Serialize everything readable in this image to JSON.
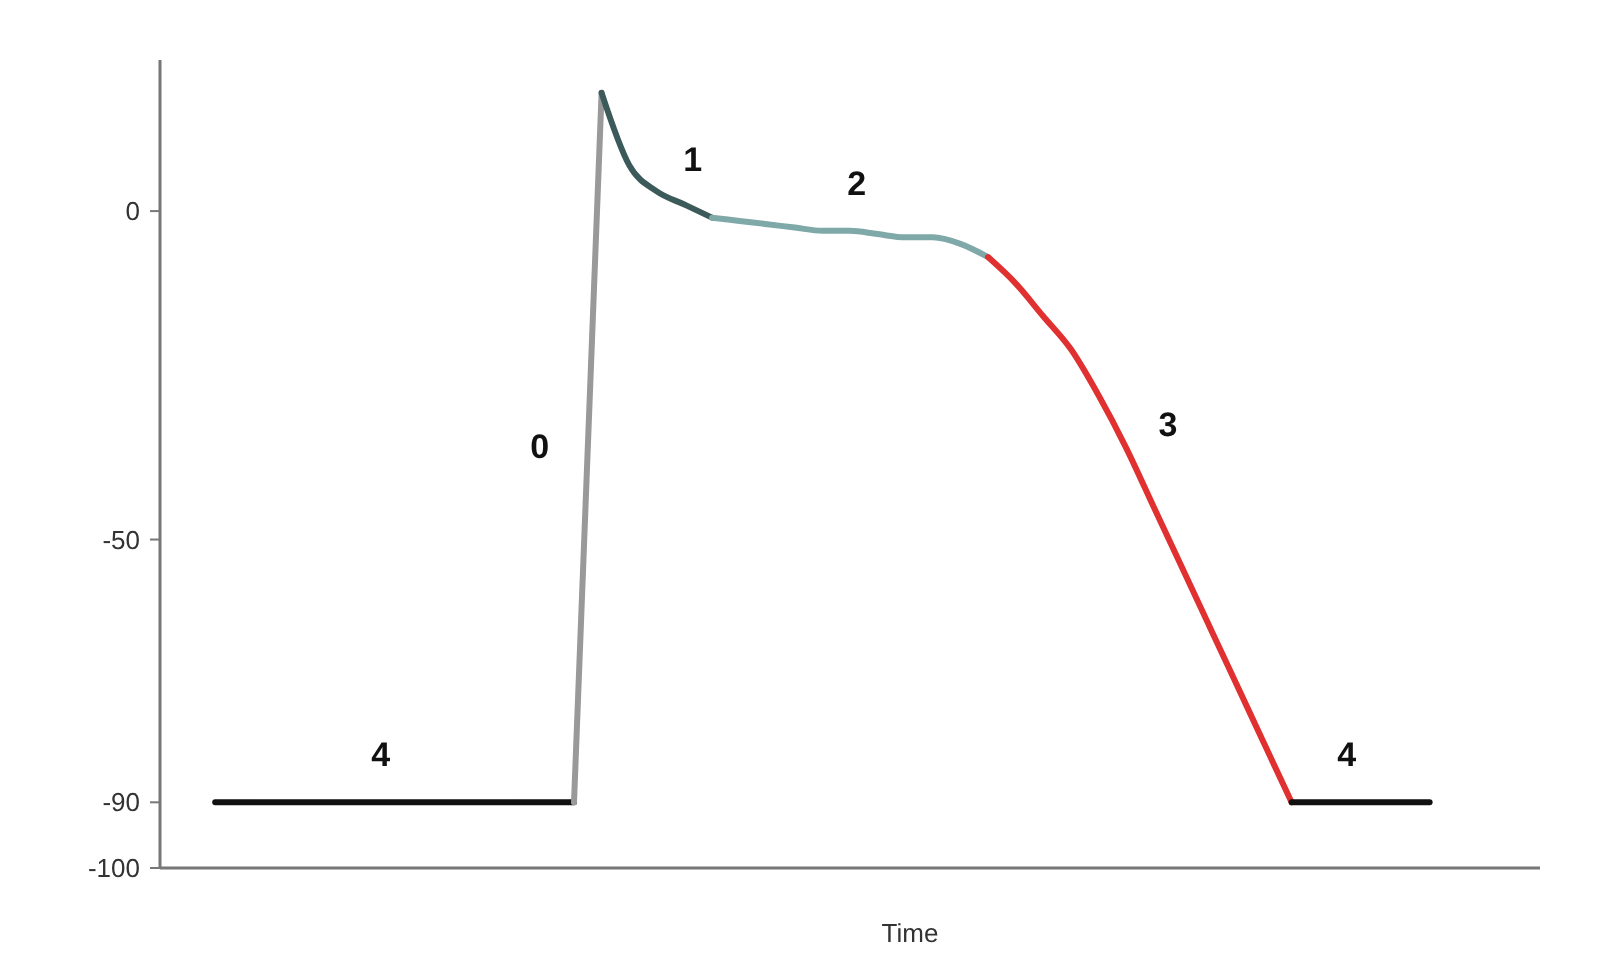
{
  "chart_data": {
    "type": "line",
    "xlabel": "Time",
    "categories": [
      null,
      null,
      null,
      null,
      null,
      null,
      null,
      null,
      null,
      null,
      null,
      null,
      null,
      null,
      null,
      null,
      null,
      null,
      null,
      null,
      null,
      null,
      null,
      null,
      null,
      null,
      null,
      null,
      null,
      null,
      null,
      null,
      null,
      null,
      null,
      null,
      null,
      null,
      null,
      null,
      null,
      null,
      null,
      null,
      null,
      null,
      null,
      null,
      null,
      null,
      null
    ],
    "ylim": [
      -100,
      23
    ],
    "yticks": [
      0,
      {
        "value": -50,
        "label": "-50"
      },
      {
        "value": -90,
        "label": "-90"
      },
      {
        "value": -100,
        "label": "-100"
      }
    ],
    "grid": false,
    "marker": "none",
    "line_style": "solid",
    "series": [
      {
        "name": "4",
        "color": "#111111",
        "values": [
          null,
          null,
          -90,
          -90,
          -90,
          -90,
          -90,
          -90,
          -90,
          -90,
          -90,
          -90,
          -90,
          -90,
          -90,
          -90,
          null,
          null,
          null,
          null,
          null,
          null,
          null,
          null,
          null,
          null,
          null,
          null,
          null,
          null,
          null,
          null,
          null,
          null,
          null,
          null,
          null,
          null,
          null,
          null,
          null,
          null,
          null,
          null,
          null,
          null,
          null,
          null,
          null,
          null,
          null
        ]
      },
      {
        "name": "0",
        "color": "#999999",
        "values": [
          null,
          null,
          null,
          null,
          null,
          null,
          null,
          null,
          null,
          null,
          null,
          null,
          null,
          null,
          null,
          -90,
          18,
          null,
          null,
          null,
          null,
          null,
          null,
          null,
          null,
          null,
          null,
          null,
          null,
          null,
          null,
          null,
          null,
          null,
          null,
          null,
          null,
          null,
          null,
          null,
          null,
          null,
          null,
          null,
          null,
          null,
          null,
          null,
          null,
          null,
          null
        ]
      },
      {
        "name": "1",
        "color": "#3d5a5a",
        "values": [
          null,
          null,
          null,
          null,
          null,
          null,
          null,
          null,
          null,
          null,
          null,
          null,
          null,
          null,
          null,
          null,
          18,
          7,
          3,
          1,
          -1,
          null,
          null,
          null,
          null,
          null,
          null,
          null,
          null,
          null,
          null,
          null,
          null,
          null,
          null,
          null,
          null,
          null,
          null,
          null,
          null,
          null,
          null,
          null,
          null,
          null,
          null,
          null,
          null,
          null,
          null
        ]
      },
      {
        "name": "2",
        "color": "#7fa8a8",
        "values": [
          null,
          null,
          null,
          null,
          null,
          null,
          null,
          null,
          null,
          null,
          null,
          null,
          null,
          null,
          null,
          null,
          null,
          null,
          null,
          null,
          -1,
          -1.5,
          -2,
          -2.5,
          -3,
          -3,
          -3.5,
          -4,
          -4,
          -5,
          -7,
          null,
          null,
          null,
          null,
          null,
          null,
          null,
          null,
          null,
          null,
          null,
          null,
          null,
          null,
          null,
          null,
          null,
          null,
          null,
          null
        ]
      },
      {
        "name": "3",
        "color": "#e03030",
        "values": [
          null,
          null,
          null,
          null,
          null,
          null,
          null,
          null,
          null,
          null,
          null,
          null,
          null,
          null,
          null,
          null,
          null,
          null,
          null,
          null,
          null,
          null,
          null,
          null,
          null,
          null,
          null,
          null,
          null,
          null,
          -7,
          -11,
          -16,
          -21,
          -28,
          -36,
          -45,
          -54,
          -63,
          -72,
          -81,
          -90,
          null,
          null,
          null,
          null,
          null,
          null,
          null,
          null,
          null
        ]
      },
      {
        "name": "4",
        "color": "#111111",
        "values": [
          null,
          null,
          null,
          null,
          null,
          null,
          null,
          null,
          null,
          null,
          null,
          null,
          null,
          null,
          null,
          null,
          null,
          null,
          null,
          null,
          null,
          null,
          null,
          null,
          null,
          null,
          null,
          null,
          null,
          null,
          null,
          null,
          null,
          null,
          null,
          null,
          null,
          null,
          null,
          null,
          null,
          -90,
          -90,
          -90,
          -90,
          -90,
          -90,
          null,
          null,
          null,
          null
        ]
      }
    ]
  }
}
